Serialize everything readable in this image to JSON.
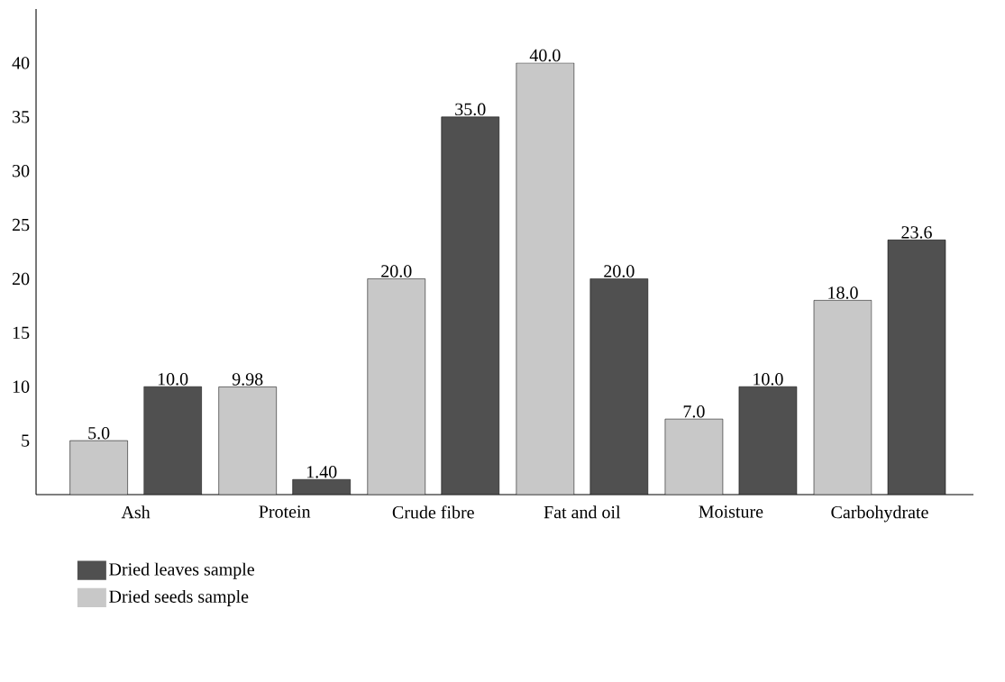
{
  "chart_data": {
    "type": "bar",
    "categories": [
      "Ash",
      "Protein",
      "Crude fibre",
      "Fat and oil",
      "Moisture",
      "Carbohydrate"
    ],
    "series": [
      {
        "name": "Dried seeds sample",
        "color": "#c8c8c8",
        "values": [
          5.0,
          9.98,
          20.0,
          40.0,
          7.0,
          18.0
        ],
        "value_labels": [
          "5.0",
          "9.98",
          "20.0",
          "40.0",
          "7.0",
          "18.0"
        ]
      },
      {
        "name": "Dried leaves sample",
        "color": "#505050",
        "values": [
          10.0,
          1.4,
          35.0,
          20.0,
          10.0,
          23.6
        ],
        "value_labels": [
          "10.0",
          "1.40",
          "35.0",
          "20.0",
          "10.0",
          "23.6"
        ]
      }
    ],
    "ylim": [
      0,
      45
    ],
    "yticks": [
      5,
      10,
      15,
      20,
      25,
      30,
      35,
      40
    ],
    "legend": "bottom left"
  }
}
